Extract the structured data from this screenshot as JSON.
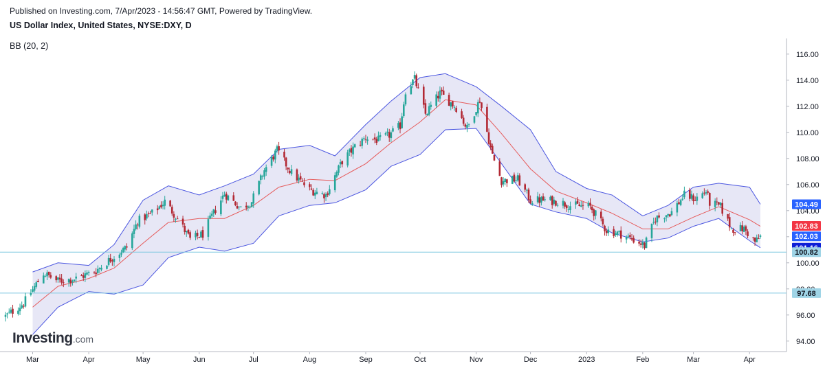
{
  "header": {
    "published": "Published on Investing.com, 7/Apr/2023 - 14:56:47 GMT, Powered by TradingView.",
    "symbol": "US Dollar Index, United States, NYSE:DXY, D",
    "indicator": "BB (20, 2)"
  },
  "logo": {
    "main": "Investing",
    "suffix": ".com"
  },
  "chart_data": {
    "type": "candlestick",
    "ylim": [
      93.2,
      117.2
    ],
    "y_ticks": [
      "94.00",
      "96.00",
      "98.00",
      "100.00",
      "102.00",
      "104.00",
      "106.00",
      "108.00",
      "110.00",
      "112.00",
      "114.00",
      "116.00"
    ],
    "y_tick_values": [
      94,
      96,
      98,
      100,
      102,
      104,
      106,
      108,
      110,
      112,
      114,
      116
    ],
    "x_month_labels": [
      "Mar",
      "Apr",
      "May",
      "Jun",
      "Jul",
      "Aug",
      "Sep",
      "Oct",
      "Nov",
      "Dec",
      "2023",
      "Feb",
      "Mar",
      "Apr"
    ],
    "x_month_dates": [
      "2022-03-01",
      "2022-04-01",
      "2022-05-01",
      "2022-06-01",
      "2022-07-01",
      "2022-08-01",
      "2022-09-01",
      "2022-10-01",
      "2022-11-01",
      "2022-12-01",
      "2023-01-01",
      "2023-02-01",
      "2023-03-01",
      "2023-04-01"
    ],
    "price_path": [
      [
        "2022-02-14",
        95.9
      ],
      [
        "2022-02-24",
        96.9
      ],
      [
        "2022-03-07",
        99.2
      ],
      [
        "2022-03-15",
        98.6
      ],
      [
        "2022-03-25",
        98.8
      ],
      [
        "2022-04-05",
        99.4
      ],
      [
        "2022-04-14",
        100.4
      ],
      [
        "2022-04-22",
        101.2
      ],
      [
        "2022-04-28",
        103.2
      ],
      [
        "2022-05-06",
        103.8
      ],
      [
        "2022-05-13",
        104.7
      ],
      [
        "2022-05-20",
        103.4
      ],
      [
        "2022-05-27",
        101.8
      ],
      [
        "2022-06-03",
        102.2
      ],
      [
        "2022-06-10",
        104.1
      ],
      [
        "2022-06-15",
        105.3
      ],
      [
        "2022-06-24",
        104.2
      ],
      [
        "2022-06-30",
        104.7
      ],
      [
        "2022-07-07",
        107.1
      ],
      [
        "2022-07-14",
        108.6
      ],
      [
        "2022-07-22",
        106.9
      ],
      [
        "2022-08-01",
        105.6
      ],
      [
        "2022-08-10",
        105.2
      ],
      [
        "2022-08-19",
        107.8
      ],
      [
        "2022-08-26",
        108.9
      ],
      [
        "2022-09-01",
        109.6
      ],
      [
        "2022-09-08",
        109.4
      ],
      [
        "2022-09-14",
        109.8
      ],
      [
        "2022-09-20",
        110.5
      ],
      [
        "2022-09-23",
        113.2
      ],
      [
        "2022-09-28",
        114.1
      ],
      [
        "2022-10-04",
        111.4
      ],
      [
        "2022-10-12",
        113.0
      ],
      [
        "2022-10-21",
        111.9
      ],
      [
        "2022-10-27",
        110.3
      ],
      [
        "2022-11-03",
        112.5
      ],
      [
        "2022-11-10",
        108.2
      ],
      [
        "2022-11-15",
        106.3
      ],
      [
        "2022-11-24",
        106.4
      ],
      [
        "2022-12-01",
        104.8
      ],
      [
        "2022-12-09",
        104.8
      ],
      [
        "2022-12-16",
        104.7
      ],
      [
        "2022-12-23",
        104.4
      ],
      [
        "2023-01-03",
        104.3
      ],
      [
        "2023-01-12",
        102.5
      ],
      [
        "2023-01-20",
        102.2
      ],
      [
        "2023-01-31",
        101.5
      ],
      [
        "2023-02-02",
        101.3
      ],
      [
        "2023-02-08",
        103.4
      ],
      [
        "2023-02-17",
        103.9
      ],
      [
        "2023-02-24",
        105.2
      ],
      [
        "2023-03-02",
        104.9
      ],
      [
        "2023-03-08",
        105.5
      ],
      [
        "2023-03-10",
        104.6
      ],
      [
        "2023-03-16",
        104.3
      ],
      [
        "2023-03-22",
        102.6
      ],
      [
        "2023-03-29",
        102.6
      ],
      [
        "2023-04-04",
        101.6
      ],
      [
        "2023-04-07",
        102.0
      ]
    ],
    "bollinger": {
      "mid": [
        [
          "2022-03-01",
          96.6
        ],
        [
          "2022-03-15",
          98.2
        ],
        [
          "2022-04-01",
          98.8
        ],
        [
          "2022-04-15",
          99.6
        ],
        [
          "2022-05-01",
          101.5
        ],
        [
          "2022-05-15",
          103.1
        ],
        [
          "2022-06-01",
          103.4
        ],
        [
          "2022-06-15",
          103.4
        ],
        [
          "2022-07-01",
          104.4
        ],
        [
          "2022-07-15",
          105.8
        ],
        [
          "2022-08-01",
          106.4
        ],
        [
          "2022-08-15",
          106.3
        ],
        [
          "2022-09-01",
          107.6
        ],
        [
          "2022-09-15",
          109.2
        ],
        [
          "2022-10-01",
          110.8
        ],
        [
          "2022-10-15",
          112.5
        ],
        [
          "2022-11-01",
          112.1
        ],
        [
          "2022-11-15",
          109.9
        ],
        [
          "2022-12-01",
          107.2
        ],
        [
          "2022-12-15",
          105.5
        ],
        [
          "2023-01-01",
          104.6
        ],
        [
          "2023-01-15",
          103.8
        ],
        [
          "2023-02-01",
          102.6
        ],
        [
          "2023-02-15",
          102.6
        ],
        [
          "2023-03-01",
          103.5
        ],
        [
          "2023-03-15",
          104.3
        ],
        [
          "2023-04-01",
          103.3
        ],
        [
          "2023-04-07",
          102.8
        ]
      ],
      "upper": [
        [
          "2022-03-01",
          99.3
        ],
        [
          "2022-03-15",
          100.0
        ],
        [
          "2022-04-01",
          99.8
        ],
        [
          "2022-04-15",
          101.4
        ],
        [
          "2022-05-01",
          104.8
        ],
        [
          "2022-05-15",
          105.9
        ],
        [
          "2022-06-01",
          105.2
        ],
        [
          "2022-06-15",
          105.9
        ],
        [
          "2022-07-01",
          106.8
        ],
        [
          "2022-07-15",
          108.7
        ],
        [
          "2022-08-01",
          109.0
        ],
        [
          "2022-08-15",
          108.2
        ],
        [
          "2022-09-01",
          110.6
        ],
        [
          "2022-09-15",
          112.4
        ],
        [
          "2022-10-01",
          114.2
        ],
        [
          "2022-10-15",
          114.5
        ],
        [
          "2022-11-01",
          113.5
        ],
        [
          "2022-11-15",
          112.0
        ],
        [
          "2022-12-01",
          110.2
        ],
        [
          "2022-12-15",
          107.0
        ],
        [
          "2023-01-01",
          105.7
        ],
        [
          "2023-01-15",
          105.2
        ],
        [
          "2023-02-01",
          103.6
        ],
        [
          "2023-02-15",
          104.4
        ],
        [
          "2023-03-01",
          105.8
        ],
        [
          "2023-03-15",
          106.1
        ],
        [
          "2023-04-01",
          105.8
        ],
        [
          "2023-04-07",
          104.49
        ]
      ],
      "lower": [
        [
          "2022-03-01",
          94.5
        ],
        [
          "2022-03-15",
          96.6
        ],
        [
          "2022-04-01",
          97.8
        ],
        [
          "2022-04-15",
          97.6
        ],
        [
          "2022-05-01",
          98.3
        ],
        [
          "2022-05-15",
          100.4
        ],
        [
          "2022-06-01",
          101.2
        ],
        [
          "2022-06-15",
          100.9
        ],
        [
          "2022-07-01",
          101.5
        ],
        [
          "2022-07-15",
          103.6
        ],
        [
          "2022-08-01",
          104.4
        ],
        [
          "2022-08-15",
          104.6
        ],
        [
          "2022-09-01",
          105.6
        ],
        [
          "2022-09-15",
          107.4
        ],
        [
          "2022-10-01",
          108.3
        ],
        [
          "2022-10-15",
          110.2
        ],
        [
          "2022-11-01",
          110.3
        ],
        [
          "2022-11-15",
          107.6
        ],
        [
          "2022-12-01",
          104.5
        ],
        [
          "2022-12-15",
          103.9
        ],
        [
          "2023-01-01",
          103.4
        ],
        [
          "2023-01-15",
          102.3
        ],
        [
          "2023-02-01",
          101.6
        ],
        [
          "2023-02-15",
          101.9
        ],
        [
          "2023-03-01",
          102.8
        ],
        [
          "2023-03-15",
          103.4
        ],
        [
          "2023-04-01",
          101.7
        ],
        [
          "2023-04-07",
          101.16
        ]
      ]
    },
    "horizontal_lines": [
      100.82,
      97.68
    ],
    "price_labels": [
      {
        "text": "104.49",
        "value": 104.49,
        "bg": "#2962ff",
        "fg": "#ffffff"
      },
      {
        "text": "102.83",
        "value": 102.83,
        "bg": "#f23645",
        "fg": "#ffffff"
      },
      {
        "text": "102.03",
        "value": 102.03,
        "bg": "#2962ff",
        "fg": "#ffffff"
      },
      {
        "text": "101.16",
        "value": 101.16,
        "bg": "#0d1fd6",
        "fg": "#ffffff"
      },
      {
        "text": "100.82",
        "value": 100.82,
        "bg": "#9fd4e6",
        "fg": "#131722"
      },
      {
        "text": "97.68",
        "value": 97.68,
        "bg": "#9fd4e6",
        "fg": "#131722"
      }
    ],
    "colors": {
      "up": "#26a69a",
      "down": "#b22833",
      "band_fill": "#e3e3f5",
      "band_line": "#4a55e0",
      "mid_line": "#e65a5a",
      "hline": "#7fc8e0",
      "axis": "#b2b5be"
    }
  }
}
